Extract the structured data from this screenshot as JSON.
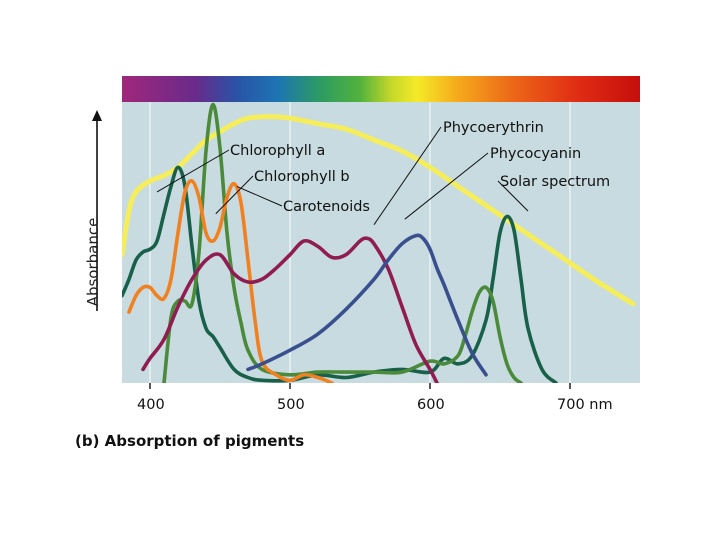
{
  "caption": "(b) Absorption of pigments",
  "chart_data": {
    "type": "line",
    "ylabel": "Absorbance",
    "xlabel": "",
    "xlim": [
      380,
      750
    ],
    "ylim": [
      0,
      1
    ],
    "x_ticks": [
      400,
      500,
      600,
      700
    ],
    "x_tick_labels": [
      "400",
      "500",
      "600",
      "700 nm"
    ],
    "grid": "vertical",
    "background": "#c7dbe0",
    "spectrum_bar": "visible-spectrum color bar across top (violet to red)",
    "series": [
      {
        "name": "Solar spectrum",
        "color": "#f5ee5a",
        "x": [
          380,
          385,
          390,
          400,
          410,
          420,
          430,
          440,
          450,
          460,
          470,
          480,
          490,
          500,
          520,
          540,
          560,
          580,
          600,
          620,
          640,
          660,
          680,
          700,
          720,
          745
        ],
        "y": [
          0.47,
          0.63,
          0.7,
          0.74,
          0.76,
          0.79,
          0.84,
          0.89,
          0.92,
          0.95,
          0.97,
          0.975,
          0.975,
          0.97,
          0.95,
          0.93,
          0.89,
          0.85,
          0.79,
          0.72,
          0.65,
          0.58,
          0.51,
          0.44,
          0.37,
          0.29
        ]
      },
      {
        "name": "Chlorophyll a",
        "color": "#18604a",
        "x": [
          380,
          385,
          390,
          395,
          400,
          405,
          410,
          415,
          420,
          425,
          430,
          435,
          440,
          445,
          450,
          460,
          470,
          480,
          500,
          520,
          540,
          560,
          580,
          600,
          610,
          620,
          630,
          640,
          645,
          650,
          655,
          660,
          665,
          670,
          680,
          690
        ],
        "y": [
          0.32,
          0.38,
          0.45,
          0.48,
          0.49,
          0.52,
          0.62,
          0.72,
          0.79,
          0.72,
          0.5,
          0.3,
          0.2,
          0.17,
          0.13,
          0.05,
          0.02,
          0.01,
          0.01,
          0.03,
          0.02,
          0.04,
          0.05,
          0.04,
          0.09,
          0.07,
          0.1,
          0.23,
          0.38,
          0.55,
          0.61,
          0.56,
          0.38,
          0.2,
          0.05,
          0.0
        ]
      },
      {
        "name": "Chlorophyll b",
        "color": "#4b8a3a",
        "x": [
          410,
          415,
          420,
          425,
          430,
          435,
          440,
          445,
          450,
          455,
          460,
          465,
          470,
          480,
          500,
          520,
          540,
          560,
          580,
          600,
          610,
          620,
          625,
          630,
          635,
          640,
          645,
          650,
          655,
          660,
          665
        ],
        "y": [
          0.0,
          0.24,
          0.3,
          0.3,
          0.29,
          0.48,
          0.85,
          1.02,
          0.86,
          0.55,
          0.35,
          0.22,
          0.12,
          0.05,
          0.03,
          0.04,
          0.04,
          0.04,
          0.04,
          0.08,
          0.07,
          0.1,
          0.17,
          0.26,
          0.33,
          0.35,
          0.3,
          0.17,
          0.07,
          0.02,
          0.0
        ]
      },
      {
        "name": "Carotenoids",
        "color": "#f08020",
        "x": [
          385,
          390,
          395,
          400,
          405,
          410,
          415,
          420,
          425,
          430,
          435,
          440,
          445,
          450,
          455,
          460,
          465,
          470,
          475,
          480,
          490,
          500,
          510,
          520,
          530
        ],
        "y": [
          0.26,
          0.32,
          0.35,
          0.35,
          0.32,
          0.31,
          0.38,
          0.55,
          0.7,
          0.74,
          0.68,
          0.55,
          0.52,
          0.57,
          0.68,
          0.73,
          0.66,
          0.45,
          0.23,
          0.08,
          0.03,
          0.01,
          0.03,
          0.02,
          0.0
        ]
      },
      {
        "name": "Phycoerythrin",
        "color": "#901c52",
        "x": [
          395,
          400,
          410,
          420,
          430,
          440,
          450,
          460,
          470,
          480,
          490,
          500,
          510,
          520,
          530,
          540,
          550,
          555,
          560,
          570,
          580,
          590,
          600,
          605
        ],
        "y": [
          0.05,
          0.09,
          0.16,
          0.28,
          0.38,
          0.45,
          0.47,
          0.4,
          0.37,
          0.38,
          0.42,
          0.47,
          0.52,
          0.5,
          0.46,
          0.47,
          0.52,
          0.53,
          0.51,
          0.42,
          0.28,
          0.14,
          0.05,
          0.0
        ]
      },
      {
        "name": "Phycocyanin",
        "color": "#3a4f8e",
        "x": [
          470,
          480,
          500,
          520,
          540,
          560,
          570,
          580,
          590,
          595,
          600,
          605,
          610,
          620,
          630,
          640
        ],
        "y": [
          0.05,
          0.07,
          0.12,
          0.18,
          0.27,
          0.38,
          0.45,
          0.51,
          0.54,
          0.53,
          0.49,
          0.42,
          0.36,
          0.23,
          0.11,
          0.03
        ]
      }
    ],
    "annotations": [
      "Chlorophyll a",
      "Chlorophyll b",
      "Carotenoids",
      "Phycoerythrin",
      "Phycocyanin",
      "Solar spectrum"
    ]
  }
}
